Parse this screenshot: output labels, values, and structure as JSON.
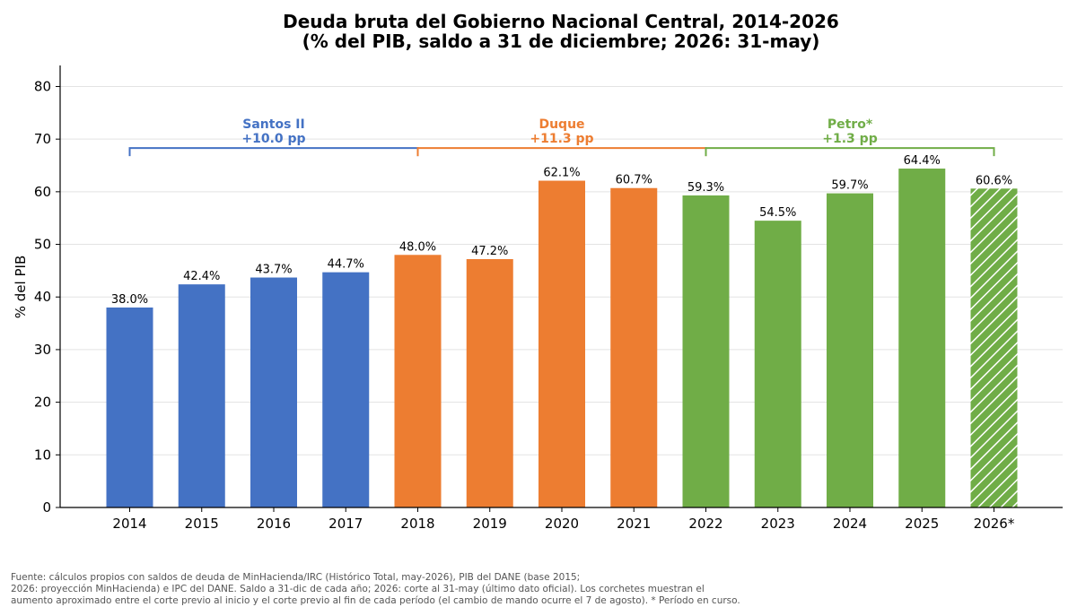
{
  "chart_data": {
    "type": "bar",
    "title": "Deuda bruta del Gobierno Nacional Central, 2014-2026",
    "subtitle": "(% del PIB, saldo a 31 de diciembre; 2026: 31-may)",
    "xlabel": "",
    "ylabel": "% del PIB",
    "ylim": [
      0,
      84
    ],
    "yticks": [
      0,
      10,
      20,
      30,
      40,
      50,
      60,
      70,
      80
    ],
    "grid": "horizontal",
    "categories": [
      "2014",
      "2015",
      "2016",
      "2017",
      "2018",
      "2019",
      "2020",
      "2021",
      "2022",
      "2023",
      "2024",
      "2025",
      "2026*"
    ],
    "values": [
      38.0,
      42.4,
      43.7,
      44.7,
      48.0,
      47.2,
      62.1,
      60.7,
      59.3,
      54.5,
      59.7,
      64.4,
      60.6
    ],
    "data_labels": [
      "38.0%",
      "42.4%",
      "43.7%",
      "44.7%",
      "48.0%",
      "47.2%",
      "62.1%",
      "60.7%",
      "59.3%",
      "54.5%",
      "59.7%",
      "64.4%",
      "60.6%"
    ],
    "bar_periods": [
      0,
      0,
      0,
      0,
      1,
      1,
      1,
      1,
      2,
      2,
      2,
      2,
      2
    ],
    "hatched": [
      false,
      false,
      false,
      false,
      false,
      false,
      false,
      false,
      false,
      false,
      false,
      false,
      true
    ],
    "periods": [
      {
        "name": "Santos II",
        "change": "+10.0 pp",
        "color": "#4472c4",
        "start": "2014",
        "end": "2018"
      },
      {
        "name": "Duque",
        "change": "+11.3 pp",
        "color": "#ed7d31",
        "start": "2018",
        "end": "2022"
      },
      {
        "name": "Petro*",
        "change": "+1.3 pp",
        "color": "#70ad47",
        "start": "2022",
        "end": "2026*"
      }
    ],
    "bracket_level": 68.3
  },
  "footnote": {
    "lines": [
      "Fuente: cálculos propios con saldos de deuda de MinHacienda/IRC (Histórico Total, may-2026), PIB del DANE (base 2015;",
      "2026: proyección MinHacienda) e IPC del DANE. Saldo a 31-dic de cada año; 2026: corte al 31-may (último dato oficial). Los corchetes muestran el",
      "aumento aproximado entre el corte previo al inicio y el corte previo al fin de cada período (el cambio de mando ocurre el 7 de agosto). * Período en curso."
    ]
  }
}
